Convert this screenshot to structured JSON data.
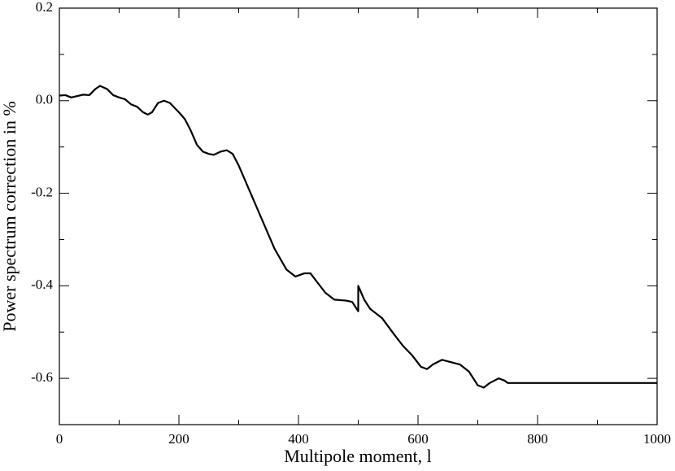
{
  "chart_data": {
    "type": "line",
    "xlabel": "Multipole moment, l",
    "ylabel": "Power spectrum correction in %",
    "xlim": [
      0,
      1000
    ],
    "ylim": [
      -0.7,
      0.2
    ],
    "xticks": [
      0,
      200,
      400,
      600,
      800,
      1000
    ],
    "xminorticks": [
      100,
      300,
      500,
      700,
      900
    ],
    "yticks": [
      0.2,
      {
        "value": 0,
        "label": "0.0"
      },
      -0.2,
      -0.4,
      -0.6
    ],
    "yminorticks": [
      0.1,
      -0.1,
      -0.3,
      -0.5,
      -0.7
    ],
    "series": [
      {
        "color": "#000000",
        "x": [
          0,
          10,
          20,
          30,
          40,
          50,
          60,
          68,
          80,
          90,
          100,
          110,
          120,
          130,
          140,
          148,
          155,
          165,
          175,
          185,
          200,
          210,
          220,
          230,
          240,
          250,
          258,
          270,
          280,
          290,
          300,
          320,
          340,
          360,
          380,
          395,
          410,
          420,
          430,
          445,
          460,
          480,
          490,
          500,
          500,
          510,
          520,
          540,
          560,
          575,
          590,
          605,
          615,
          625,
          640,
          655,
          670,
          685,
          700,
          710,
          720,
          735,
          745,
          750,
          1000
        ],
        "values": [
          0.011,
          0.012,
          0.007,
          0.01,
          0.013,
          0.012,
          0.025,
          0.032,
          0.025,
          0.012,
          0.007,
          0.003,
          -0.008,
          -0.013,
          -0.025,
          -0.03,
          -0.025,
          -0.005,
          0.0,
          -0.005,
          -0.025,
          -0.04,
          -0.065,
          -0.095,
          -0.11,
          -0.115,
          -0.117,
          -0.11,
          -0.107,
          -0.115,
          -0.14,
          -0.2,
          -0.26,
          -0.32,
          -0.365,
          -0.38,
          -0.373,
          -0.373,
          -0.39,
          -0.415,
          -0.43,
          -0.432,
          -0.435,
          -0.455,
          -0.4,
          -0.43,
          -0.45,
          -0.47,
          -0.505,
          -0.53,
          -0.55,
          -0.575,
          -0.58,
          -0.57,
          -0.56,
          -0.565,
          -0.57,
          -0.585,
          -0.615,
          -0.62,
          -0.61,
          -0.6,
          -0.605,
          -0.61,
          -0.61
        ]
      }
    ]
  }
}
